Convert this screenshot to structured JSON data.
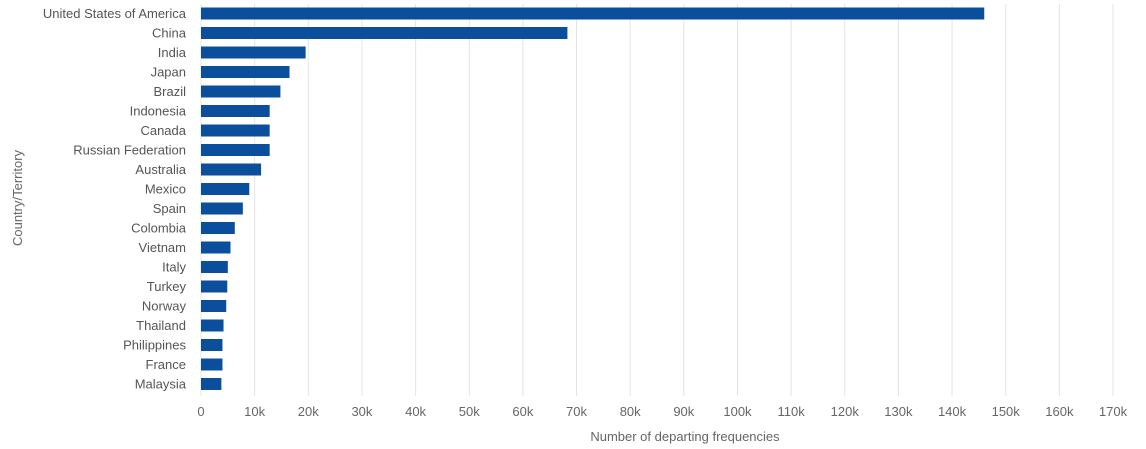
{
  "chart_data": {
    "type": "bar",
    "orientation": "horizontal",
    "xlabel": "Number of departing frequencies",
    "ylabel": "Country/Territory",
    "xlim": [
      0,
      170000
    ],
    "x_ticks": [
      0,
      10000,
      20000,
      30000,
      40000,
      50000,
      60000,
      70000,
      80000,
      90000,
      100000,
      110000,
      120000,
      130000,
      140000,
      150000,
      160000,
      170000
    ],
    "x_tick_labels": [
      "0",
      "10k",
      "20k",
      "30k",
      "40k",
      "50k",
      "60k",
      "70k",
      "80k",
      "90k",
      "100k",
      "110k",
      "120k",
      "130k",
      "140k",
      "150k",
      "160k",
      "170k"
    ],
    "grid": true,
    "bar_color": "#0b4f9c",
    "categories": [
      "United States of America",
      "China",
      "India",
      "Japan",
      "Brazil",
      "Indonesia",
      "Canada",
      "Russian Federation",
      "Australia",
      "Mexico",
      "Spain",
      "Colombia",
      "Vietnam",
      "Italy",
      "Turkey",
      "Norway",
      "Thailand",
      "Philippines",
      "France",
      "Malaysia"
    ],
    "values": [
      146000,
      68300,
      19500,
      16500,
      14800,
      12800,
      12800,
      12800,
      11200,
      9000,
      7800,
      6300,
      5500,
      5000,
      4900,
      4700,
      4200,
      4000,
      4000,
      3800
    ]
  }
}
